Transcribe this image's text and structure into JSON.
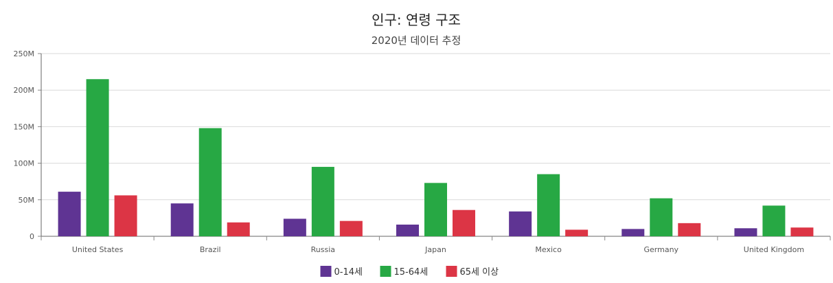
{
  "chart_data": {
    "type": "bar",
    "title": "인구: 연령 구조",
    "subtitle": "2020년 데이터 추정",
    "categories": [
      "United States",
      "Brazil",
      "Russia",
      "Japan",
      "Mexico",
      "Germany",
      "United Kingdom"
    ],
    "series": [
      {
        "name": "0-14세",
        "color": "#5f3493",
        "values": [
          61,
          45,
          24,
          16,
          34,
          10,
          11
        ]
      },
      {
        "name": "15-64세",
        "color": "#27a844",
        "values": [
          215,
          148,
          95,
          73,
          85,
          52,
          42
        ]
      },
      {
        "name": "65세 이상",
        "color": "#dc3545",
        "values": [
          56,
          19,
          21,
          36,
          9,
          18,
          12
        ]
      }
    ],
    "ylim": [
      0,
      250
    ],
    "yticks": [
      "0",
      "50M",
      "100M",
      "150M",
      "200M",
      "250M"
    ],
    "ytick_values": [
      0,
      50,
      100,
      150,
      200,
      250
    ],
    "value_unit": "millions",
    "grid": true,
    "legend_position": "bottom"
  }
}
